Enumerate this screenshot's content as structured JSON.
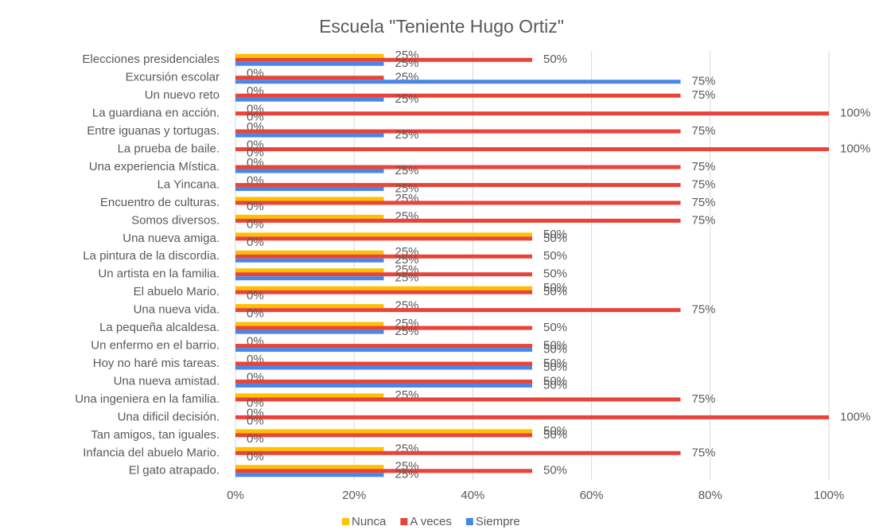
{
  "chart_data": {
    "type": "bar",
    "orientation": "horizontal",
    "title": "Escuela \"Teniente Hugo Ortiz\"",
    "categories": [
      "Elecciones presidenciales",
      "Excursión escolar",
      "Un nuevo reto",
      "La guardiana en acción.",
      "Entre iguanas y tortugas.",
      "La prueba de baile.",
      "Una experiencia Mística.",
      "La Yincana.",
      "Encuentro de culturas.",
      "Somos diversos.",
      "Una nueva amiga.",
      "La pintura de la discordia.",
      "Un artista en la familia.",
      "El abuelo Mario.",
      "Una nueva vida.",
      "La pequeña alcaldesa.",
      "Un enfermo en el barrio.",
      "Hoy no haré mis tareas.",
      "Una nueva amistad.",
      "Una ingeniera en la familia.",
      "Una dificil decisión.",
      "Tan amigos, tan iguales.",
      "Infancia del abuelo Mario.",
      "El gato atrapado."
    ],
    "series": [
      {
        "name": "Nunca",
        "color": "#ffc000",
        "values": [
          25,
          0,
          0,
          0,
          0,
          0,
          0,
          0,
          25,
          25,
          50,
          25,
          25,
          50,
          25,
          25,
          0,
          0,
          0,
          25,
          0,
          50,
          25,
          25
        ],
        "value_labels": [
          "25%",
          "0%",
          "0%",
          "0%",
          "0%",
          "0%",
          "0%",
          "0%",
          "25%",
          "25%",
          "50%",
          "25%",
          "25%",
          "50%",
          "25%",
          "25%",
          "0%",
          "0%",
          "0%",
          "25%",
          "0%",
          "50%",
          "25%",
          "25%"
        ]
      },
      {
        "name": "A veces",
        "color": "#e8443a",
        "values": [
          50,
          25,
          75,
          100,
          75,
          100,
          75,
          75,
          75,
          75,
          50,
          50,
          50,
          50,
          75,
          50,
          50,
          50,
          50,
          75,
          100,
          50,
          75,
          50
        ],
        "value_labels": [
          "50%",
          "25%",
          "75%",
          "100%",
          "75%",
          "100%",
          "75%",
          "75%",
          "75%",
          "75%",
          "50%",
          "50%",
          "50%",
          "50%",
          "75%",
          "50%",
          "50%",
          "50%",
          "50%",
          "75%",
          "100%",
          "50%",
          "75%",
          "50%"
        ]
      },
      {
        "name": "Siempre",
        "color": "#4a86e8",
        "values": [
          25,
          75,
          25,
          0,
          25,
          0,
          25,
          25,
          0,
          0,
          0,
          25,
          25,
          0,
          0,
          25,
          50,
          50,
          50,
          0,
          0,
          0,
          0,
          25
        ],
        "value_labels": [
          "25%",
          "75%",
          "25%",
          "0%",
          "25%",
          "0%",
          "25%",
          "25%",
          "0%",
          "0%",
          "0%",
          "25%",
          "25%",
          "0%",
          "0%",
          "25%",
          "50%",
          "50%",
          "50%",
          "0%",
          "0%",
          "0%",
          "0%",
          "25%"
        ]
      }
    ],
    "xlim": [
      0,
      100
    ],
    "xticks": [
      {
        "value": 0,
        "label": "0%"
      },
      {
        "value": 20,
        "label": "20%"
      },
      {
        "value": 40,
        "label": "40%"
      },
      {
        "value": 60,
        "label": "60%"
      },
      {
        "value": 80,
        "label": "80%"
      },
      {
        "value": 100,
        "label": "100%"
      }
    ],
    "grid": true,
    "legend": "bottom"
  }
}
